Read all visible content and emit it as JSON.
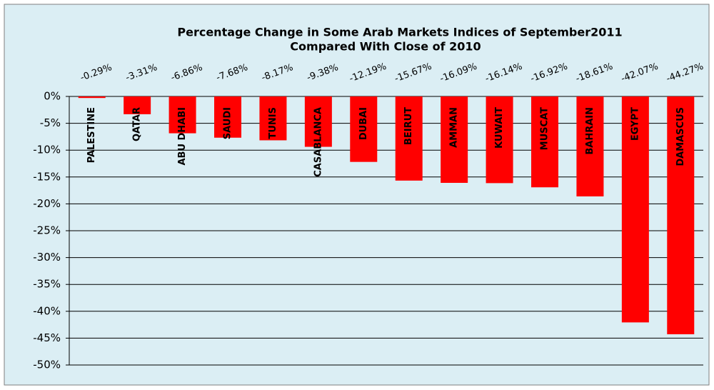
{
  "chart_data": {
    "type": "bar",
    "title": [
      "Percentage  Change in Some Arab Markets Indices of September2011",
      "Compared With Close of  2010"
    ],
    "categories": [
      "PALESTINE",
      "QATAR",
      "ABU DHABI",
      "SAUDI",
      "TUNIS",
      "CASABLANCA",
      "DUBAI",
      "BEIRUT",
      "AMMAN",
      "KUWAIT",
      "MUSCAT",
      "BAHRAIN",
      "EGYPT",
      "DAMASCUS"
    ],
    "values": [
      -0.29,
      -3.31,
      -6.86,
      -7.68,
      -8.17,
      -9.38,
      -12.19,
      -15.67,
      -16.09,
      -16.14,
      -16.92,
      -18.61,
      -42.07,
      -44.27
    ],
    "value_labels": [
      "-0.29%",
      "-3.31%",
      "-6.86%",
      "-7.68%",
      "-8.17%",
      "-9.38%",
      "-12.19%",
      "-15.67%",
      "-16.09%",
      "-16.14%",
      "-16.92%",
      "-18.61%",
      "-42.07%",
      "-44.27%"
    ],
    "color": "#ff0000",
    "ylim": [
      -50,
      0
    ],
    "yticks": [
      {
        "value": 0,
        "label": "0%"
      },
      {
        "value": -5,
        "label": "-5%"
      },
      {
        "value": -10,
        "label": "-10%"
      },
      {
        "value": -15,
        "label": "-15%"
      },
      {
        "value": -20,
        "label": "-20%"
      },
      {
        "value": -25,
        "label": "-25%"
      },
      {
        "value": -30,
        "label": "-30%"
      },
      {
        "value": -35,
        "label": "-35%"
      },
      {
        "value": -40,
        "label": "-40%"
      },
      {
        "value": -45,
        "label": "-45%"
      },
      {
        "value": -50,
        "label": "-50%"
      }
    ],
    "grid": true
  }
}
